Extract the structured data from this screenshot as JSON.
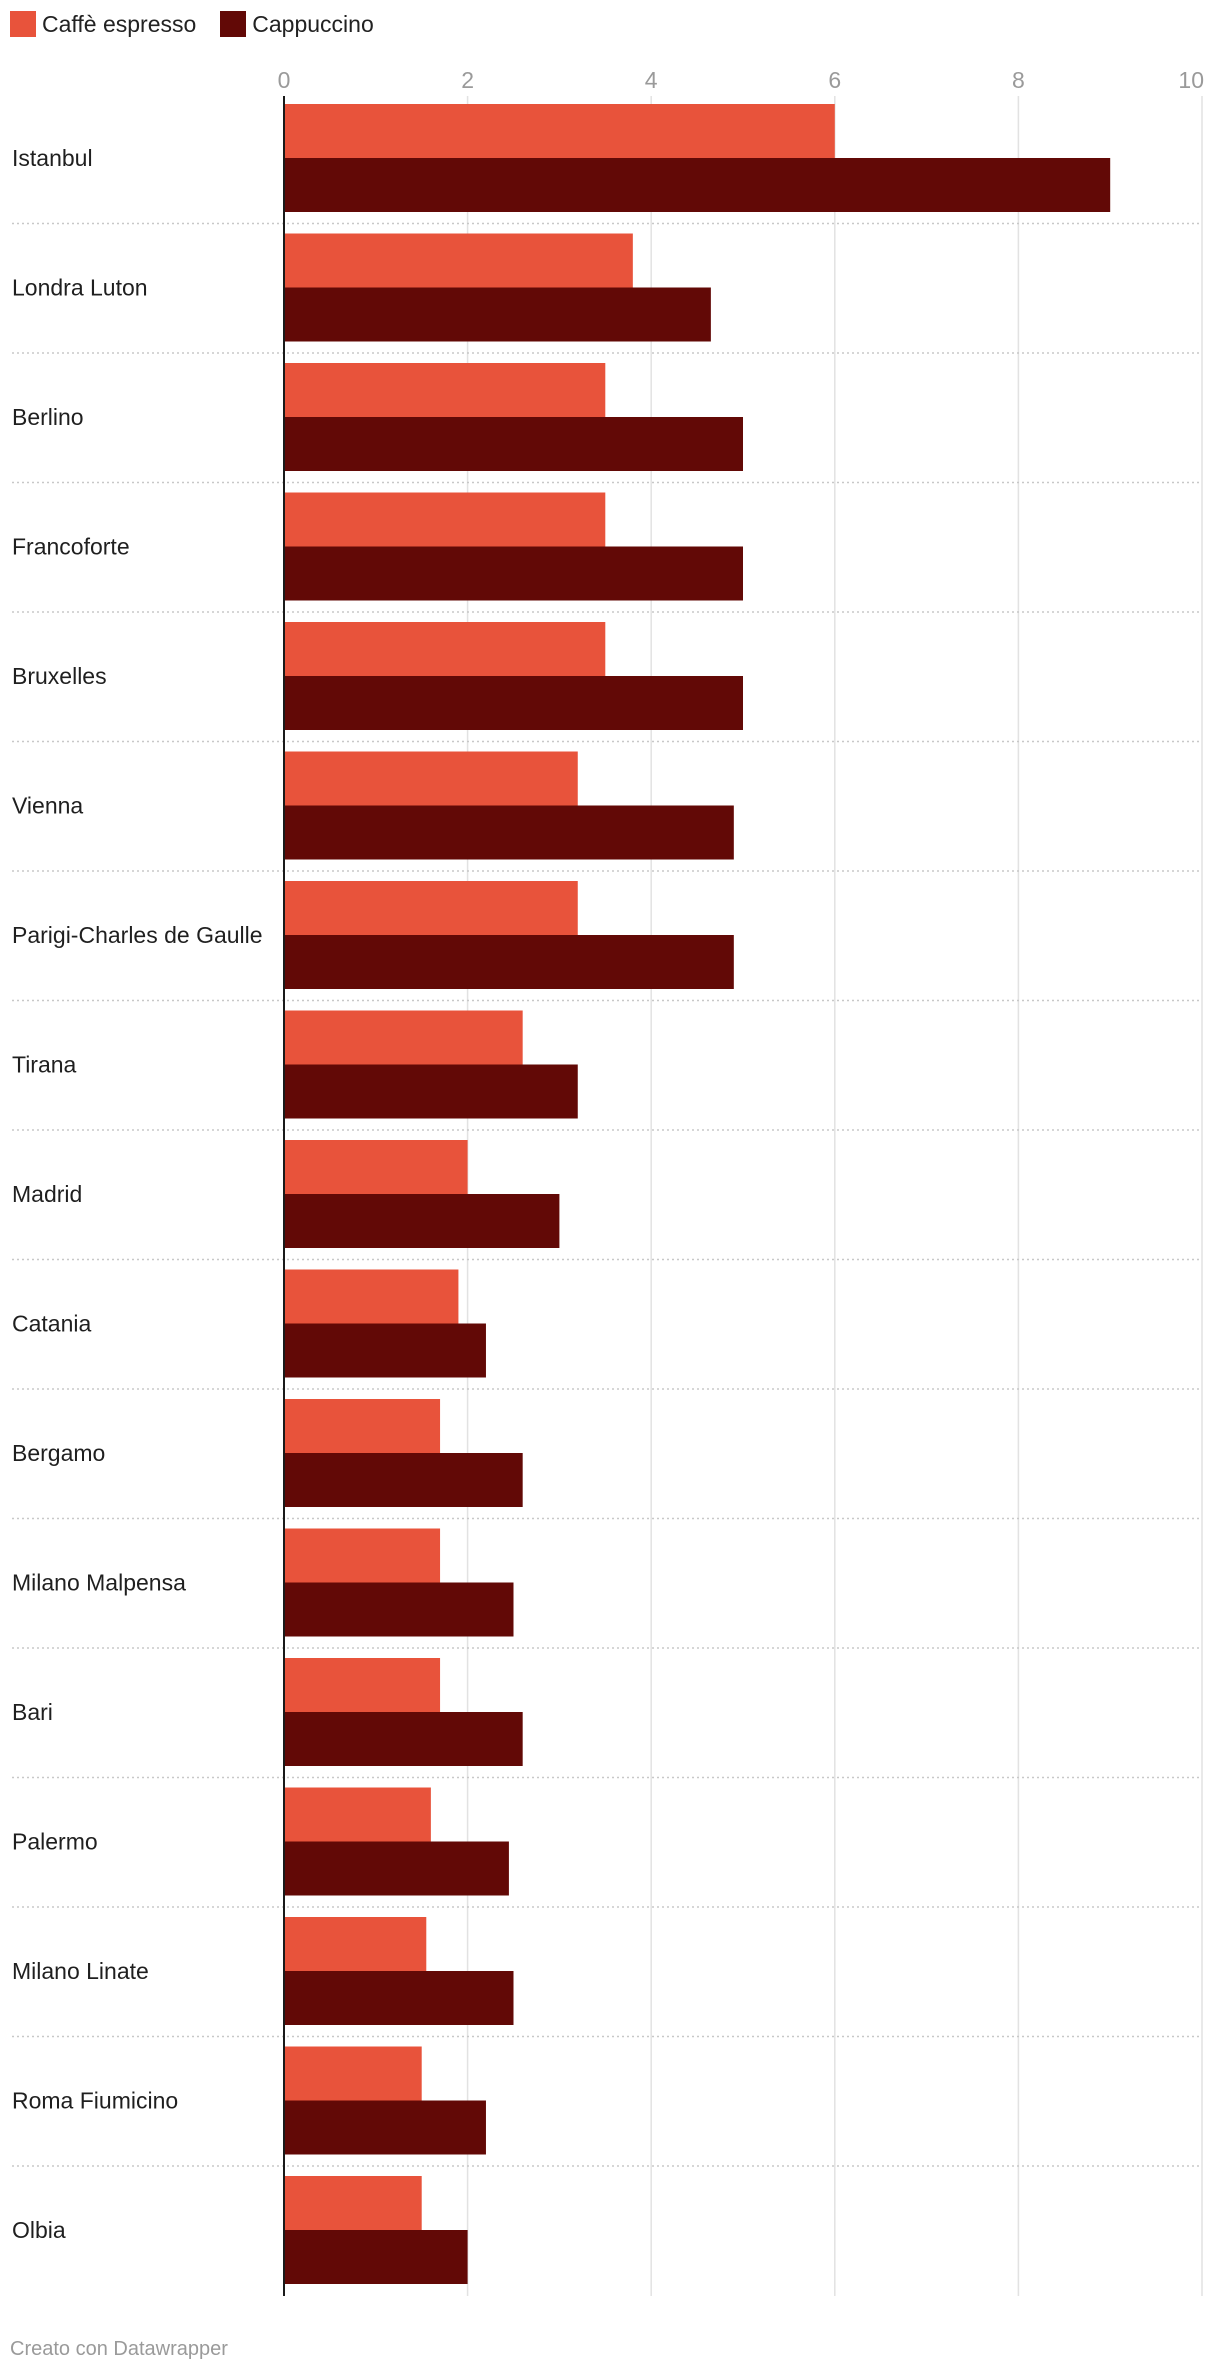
{
  "chart_data": {
    "type": "bar",
    "orientation": "horizontal",
    "categories": [
      "Istanbul",
      "Londra Luton",
      "Berlino",
      "Francoforte",
      "Bruxelles",
      "Vienna",
      "Parigi-Charles de Gaulle",
      "Tirana",
      "Madrid",
      "Catania",
      "Bergamo",
      "Milano Malpensa",
      "Bari",
      "Palermo",
      "Milano Linate",
      "Roma Fiumicino",
      "Olbia"
    ],
    "series": [
      {
        "name": "Caffè espresso",
        "color": "#E8533B",
        "values": [
          6.0,
          3.8,
          3.5,
          3.5,
          3.5,
          3.2,
          3.2,
          2.6,
          2.0,
          1.9,
          1.7,
          1.7,
          1.7,
          1.6,
          1.55,
          1.5,
          1.5
        ]
      },
      {
        "name": "Cappuccino",
        "color": "#620906",
        "values": [
          9.0,
          4.65,
          5.0,
          5.0,
          5.0,
          4.9,
          4.9,
          3.2,
          3.0,
          2.2,
          2.6,
          2.5,
          2.6,
          2.45,
          2.5,
          2.2,
          2.0
        ]
      }
    ],
    "xlim": [
      0,
      10
    ],
    "xticks": [
      0,
      2,
      4,
      6,
      8,
      10
    ],
    "grid": true,
    "legend_position": "top-left",
    "title": "",
    "xlabel": "",
    "ylabel": ""
  },
  "footer": {
    "credit": "Creato con Datawrapper"
  }
}
